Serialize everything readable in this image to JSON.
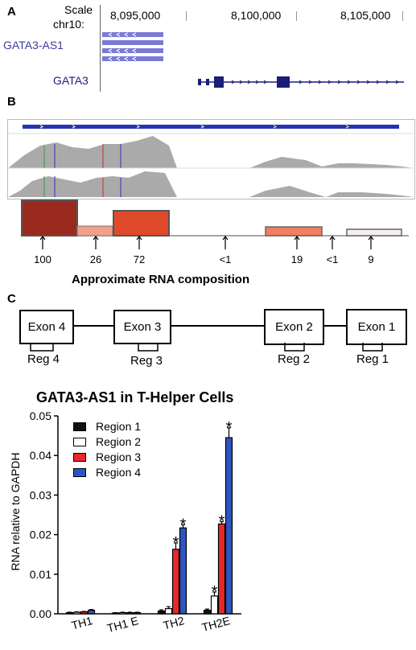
{
  "panel_a": {
    "letter": "A",
    "scale_label": "Scale",
    "chrom_label": "chr10:",
    "positions": [
      "8,095,000",
      "8,100,000",
      "8,105,000"
    ],
    "genes": [
      "GATA3-AS1",
      "GATA3"
    ],
    "gene_color": "#3c3c9a"
  },
  "panel_b": {
    "letter": "B",
    "composition_values": [
      "100",
      "26",
      "72",
      "<1",
      "19",
      "<1",
      "9"
    ],
    "composition_label": "Approximate RNA composition",
    "bar_colors": [
      "#9b2a1e",
      "#f2a08a",
      "#e04a2a",
      "#f08060",
      "#f4efec"
    ]
  },
  "panel_c": {
    "letter": "C",
    "exons": [
      "Exon 4",
      "Exon 3",
      "Exon 2",
      "Exon 1"
    ],
    "regions": [
      "Reg 4",
      "Reg 3",
      "Reg 2",
      "Reg 1"
    ]
  },
  "chart_data": {
    "type": "bar",
    "title": "GATA3-AS1 in T-Helper Cells",
    "ylabel": "RNA relative to GAPDH",
    "xlabel": "",
    "categories": [
      "TH1",
      "TH1 E",
      "TH2",
      "TH2E"
    ],
    "ylim": [
      0,
      0.05
    ],
    "yticks": [
      "0.00",
      "0.01",
      "0.02",
      "0.03",
      "0.04",
      "0.05"
    ],
    "legend_position": "top-left",
    "series": [
      {
        "name": "Region 1",
        "color": "#111111",
        "values": [
          0.0003,
          0.0002,
          0.0007,
          0.0009
        ],
        "errors": [
          0.0001,
          0.0001,
          0.0003,
          0.0003
        ],
        "stars": [
          false,
          false,
          false,
          false
        ]
      },
      {
        "name": "Region 2",
        "color": "#ffffff",
        "values": [
          0.0004,
          0.0003,
          0.0013,
          0.0045
        ],
        "errors": [
          0.0001,
          0.0001,
          0.0005,
          0.001
        ],
        "stars": [
          false,
          false,
          false,
          true
        ]
      },
      {
        "name": "Region 3",
        "color": "#e8282a",
        "values": [
          0.0005,
          0.0003,
          0.0163,
          0.0227
        ],
        "errors": [
          0.0001,
          0.0001,
          0.0016,
          0.0006
        ],
        "stars": [
          false,
          false,
          true,
          true
        ]
      },
      {
        "name": "Region 4",
        "color": "#2c55c2",
        "values": [
          0.0009,
          0.0003,
          0.0217,
          0.0445
        ],
        "errors": [
          0.0002,
          0.0001,
          0.0008,
          0.0025
        ],
        "stars": [
          false,
          false,
          true,
          true
        ]
      }
    ],
    "star_symbol": "*"
  }
}
